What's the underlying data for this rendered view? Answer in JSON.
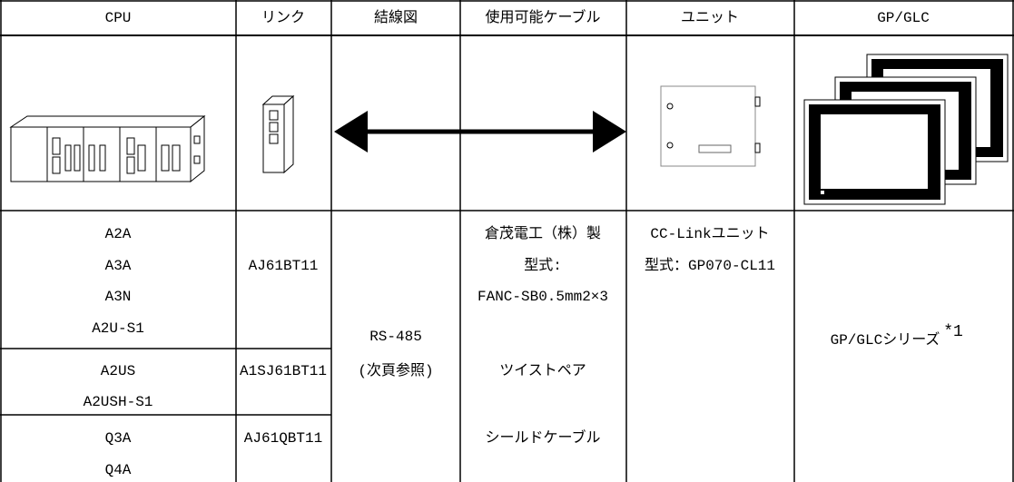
{
  "table": {
    "header": [
      "CPU",
      "リンク",
      "結線図",
      "使用可能ケーブル",
      "ユニット",
      "GP/GLC"
    ],
    "cpu_groups": [
      {
        "models": [
          "A2A",
          "A3A",
          "A3N",
          "A2U-S1"
        ],
        "link": "AJ61BT11"
      },
      {
        "models": [
          "A2US",
          "A2USH-S1"
        ],
        "link": "A1SJ61BT11"
      },
      {
        "models": [
          "Q3A",
          "Q4A"
        ],
        "link": "AJ61QBT11"
      }
    ],
    "connection": [
      "RS-485",
      "(次頁参照)"
    ],
    "cable": [
      "倉茂電工（株）製",
      "型式:",
      "FANC-SB0.5mm2×3",
      "ツイストペア",
      "シールドケーブル"
    ],
    "unit": [
      "CC-Linkユニット",
      "型式：GP070-CL11"
    ],
    "gp": {
      "text": "GP/GLCシリーズ",
      "note": "*1"
    }
  }
}
